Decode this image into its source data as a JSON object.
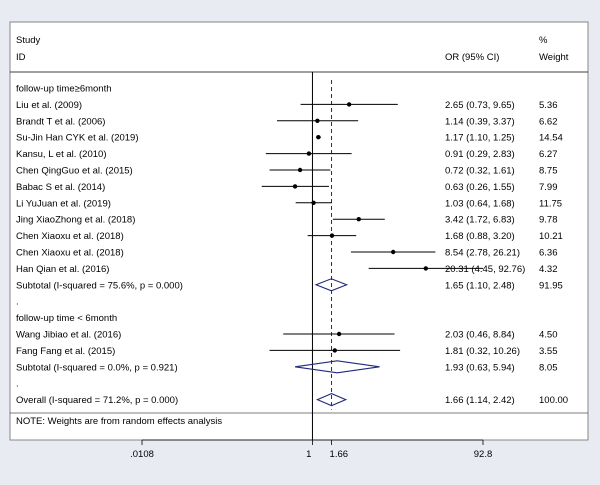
{
  "chart_data": {
    "type": "forest",
    "header": {
      "study": "Study",
      "id": "ID",
      "or_col": "OR (95% CI)",
      "pct": "%",
      "weight": "Weight"
    },
    "groups": [
      {
        "label": "follow-up time≥6month",
        "studies": [
          {
            "name": "Liu et al. (2009)",
            "or": 2.65,
            "lo": 0.73,
            "hi": 9.65,
            "ci_text": "2.65 (0.73, 9.65)",
            "weight": "5.36"
          },
          {
            "name": "Brandt T et al. (2006)",
            "or": 1.14,
            "lo": 0.39,
            "hi": 3.37,
            "ci_text": "1.14 (0.39, 3.37)",
            "weight": "6.62"
          },
          {
            "name": "Su-Jin Han CYK et al. (2019)",
            "or": 1.17,
            "lo": 1.1,
            "hi": 1.25,
            "ci_text": "1.17 (1.10, 1.25)",
            "weight": "14.54"
          },
          {
            "name": "Kansu, L et al. (2010)",
            "or": 0.91,
            "lo": 0.29,
            "hi": 2.83,
            "ci_text": "0.91 (0.29, 2.83)",
            "weight": "6.27"
          },
          {
            "name": "Chen QingGuo et al. (2015)",
            "or": 0.72,
            "lo": 0.32,
            "hi": 1.61,
            "ci_text": "0.72 (0.32, 1.61)",
            "weight": "8.75"
          },
          {
            "name": "Babac S et al. (2014)",
            "or": 0.63,
            "lo": 0.26,
            "hi": 1.55,
            "ci_text": "0.63 (0.26, 1.55)",
            "weight": "7.99"
          },
          {
            "name": "Li YuJuan et al. (2019)",
            "or": 1.03,
            "lo": 0.64,
            "hi": 1.68,
            "ci_text": "1.03 (0.64, 1.68)",
            "weight": "11.75"
          },
          {
            "name": "Jing XiaoZhong et al. (2018)",
            "or": 3.42,
            "lo": 1.72,
            "hi": 6.83,
            "ci_text": "3.42 (1.72, 6.83)",
            "weight": "9.78"
          },
          {
            "name": "Chen Xiaoxu et al. (2018)",
            "or": 1.68,
            "lo": 0.88,
            "hi": 3.2,
            "ci_text": "1.68 (0.88, 3.20)",
            "weight": "10.21"
          },
          {
            "name": "Chen Xiaoxu et al. (2018)",
            "or": 8.54,
            "lo": 2.78,
            "hi": 26.21,
            "ci_text": "8.54 (2.78, 26.21)",
            "weight": "6.36"
          },
          {
            "name": "Han Qian et al. (2016)",
            "or": 20.31,
            "lo": 4.45,
            "hi": 92.76,
            "ci_text": "20.31 (4.45, 92.76)",
            "weight": "4.32"
          }
        ],
        "subtotal": {
          "label": "Subtotal  (I-squared = 75.6%, p = 0.000)",
          "or": 1.65,
          "lo": 1.1,
          "hi": 2.48,
          "ci_text": "1.65 (1.10, 2.48)",
          "weight": "91.95"
        }
      },
      {
        "label": "follow-up time < 6month",
        "studies": [
          {
            "name": "Wang Jibiao et al. (2016)",
            "or": 2.03,
            "lo": 0.46,
            "hi": 8.84,
            "ci_text": "2.03 (0.46, 8.84)",
            "weight": "4.50"
          },
          {
            "name": "Fang Fang et al. (2015)",
            "or": 1.81,
            "lo": 0.32,
            "hi": 10.26,
            "ci_text": "1.81 (0.32, 10.26)",
            "weight": "3.55"
          }
        ],
        "subtotal": {
          "label": "Subtotal  (I-squared = 0.0%, p = 0.921)",
          "or": 1.93,
          "lo": 0.63,
          "hi": 5.94,
          "ci_text": "1.93 (0.63, 5.94)",
          "weight": "8.05"
        }
      }
    ],
    "overall": {
      "label": "Overall  (I-squared = 71.2%, p = 0.000)",
      "or": 1.66,
      "lo": 1.14,
      "hi": 2.42,
      "ci_text": "1.66 (1.14, 2.42)",
      "weight": "100.00"
    },
    "separator": ".",
    "note": "NOTE: Weights are from random effects analysis",
    "x_scale": "log",
    "x_ticks": [
      {
        "value": 0.0108,
        "label": ".0108"
      },
      {
        "value": 1,
        "label": "1"
      },
      {
        "value": 1.66,
        "label": "1.66"
      },
      {
        "value": 92.8,
        "label": "92.8"
      }
    ],
    "xlim": [
      0.0108,
      92.8
    ],
    "null_value": 1,
    "pooled_value": 1.66,
    "colors": {
      "background": "#e8ecf2",
      "panel": "#ffffff",
      "ink": "#000000",
      "diamond": "#1f2a7a",
      "pooled_line": "#a00000"
    }
  }
}
